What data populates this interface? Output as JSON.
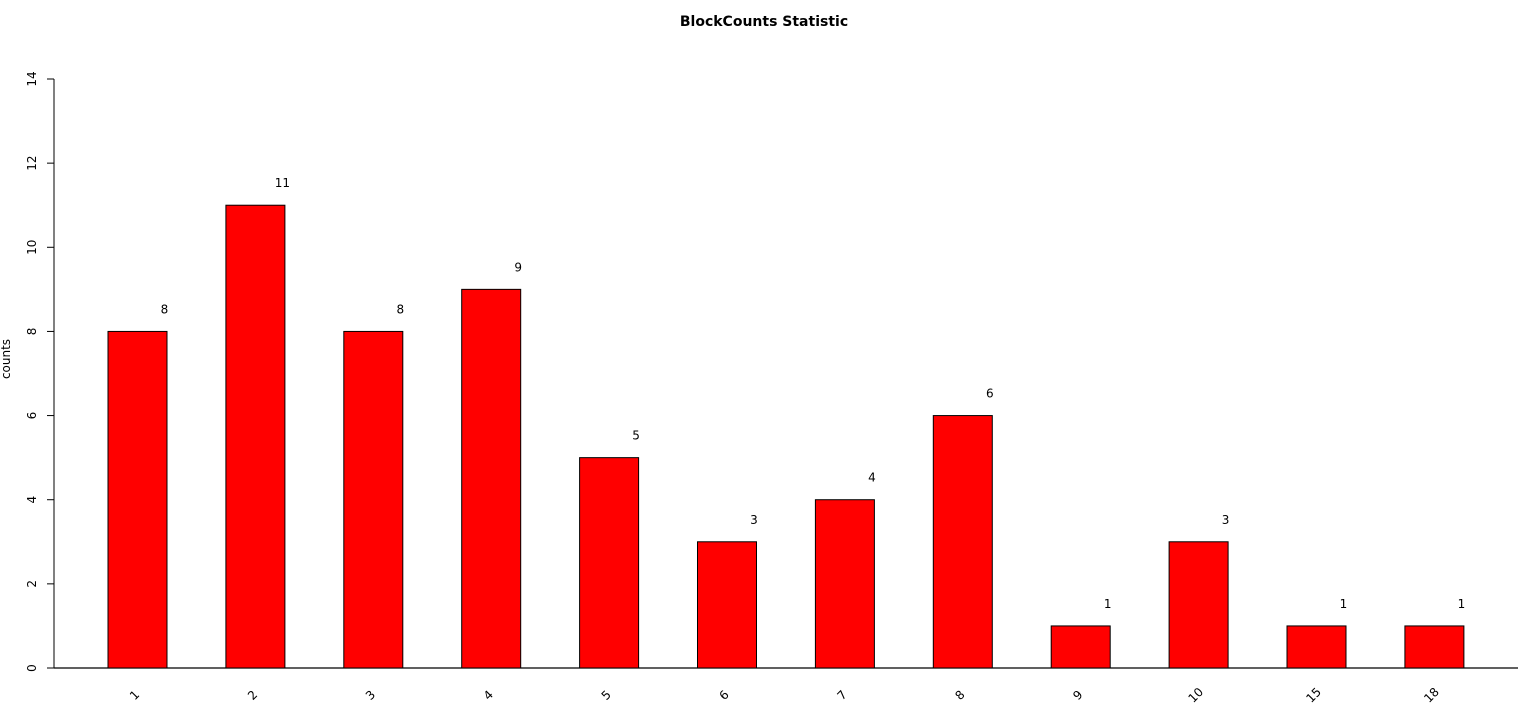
{
  "chart_data": {
    "type": "bar",
    "title": "BlockCounts Statistic",
    "xlabel": "",
    "ylabel": "counts",
    "categories": [
      "1",
      "2",
      "3",
      "4",
      "5",
      "6",
      "7",
      "8",
      "9",
      "10",
      "15",
      "18"
    ],
    "values": [
      8,
      11,
      8,
      9,
      5,
      3,
      4,
      6,
      1,
      3,
      1,
      1
    ],
    "data_labels": [
      "8",
      "11",
      "8",
      "9",
      "5",
      "3",
      "4",
      "6",
      "1",
      "3",
      "1",
      "1"
    ],
    "ylim": [
      0,
      14
    ],
    "yticks": [
      "0",
      "2",
      "4",
      "6",
      "8",
      "10",
      "12",
      "14"
    ],
    "grid": false,
    "legend": "none",
    "bar_color": "#ff0000",
    "bar_border_color": "#000000"
  }
}
